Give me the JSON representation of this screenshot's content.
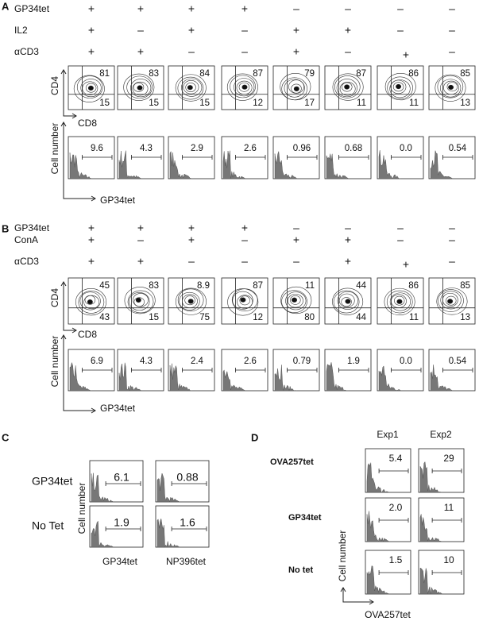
{
  "panels": [
    {
      "label": "A",
      "conditions": [
        {
          "name": "GP34tet",
          "signs": [
            "+",
            "+",
            "+",
            "+",
            "–",
            "–",
            "–",
            "–"
          ]
        },
        {
          "name": "IL2",
          "signs": [
            "+",
            "–",
            "+",
            "–",
            "+",
            "+",
            "–",
            "–"
          ]
        },
        {
          "name": "αCD3",
          "signs": [
            "+",
            "+",
            "–",
            "–",
            "+",
            "–",
            "+",
            "–"
          ]
        }
      ],
      "contour_y_label": "CD4",
      "contour_x_label": "CD8",
      "contour_top": [
        "81",
        "83",
        "84",
        "87",
        "79",
        "87",
        "86",
        "85"
      ],
      "contour_bottom": [
        "15",
        "15",
        "15",
        "12",
        "17",
        "11",
        "11",
        "13"
      ],
      "hist_y_label": "Cell number",
      "hist_x_label": "GP34tet",
      "hist_values": [
        "9.6",
        "4.3",
        "2.9",
        "2.6",
        "0.96",
        "0.68",
        "0.0",
        "0.54"
      ]
    },
    {
      "label": "B",
      "conditions": [
        {
          "name": "GP34tet",
          "signs": [
            "+",
            "+",
            "+",
            "+",
            "–",
            "–",
            "–",
            "–"
          ]
        },
        {
          "name": "ConA",
          "signs": [
            "+",
            "–",
            "+",
            "–",
            "+",
            "+",
            "–",
            "–"
          ]
        },
        {
          "name": "αCD3",
          "signs": [
            "+",
            "+",
            "–",
            "–",
            "–",
            "+",
            "+",
            "–"
          ]
        }
      ],
      "contour_y_label": "CD4",
      "contour_x_label": "CD8",
      "contour_top": [
        "45",
        "83",
        "8.9",
        "87",
        "11",
        "44",
        "86",
        "85"
      ],
      "contour_bottom": [
        "43",
        "15",
        "75",
        "12",
        "80",
        "44",
        "11",
        "13"
      ],
      "hist_y_label": "Cell number",
      "hist_x_label": "GP34tet",
      "hist_values": [
        "6.9",
        "4.3",
        "2.4",
        "2.6",
        "0.79",
        "1.9",
        "0.0",
        "0.54"
      ]
    },
    {
      "label": "C",
      "rows": [
        "GP34tet",
        "No Tet"
      ],
      "x_labels": [
        "GP34tet",
        "NP396tet"
      ],
      "y_label": "Cell number",
      "values": [
        [
          "6.1",
          "0.88"
        ],
        [
          "1.9",
          "1.6"
        ]
      ]
    },
    {
      "label": "D",
      "columns": [
        "Exp1",
        "Exp2"
      ],
      "rows": [
        "OVA257tet",
        "GP34tet",
        "No tet"
      ],
      "x_label": "OVA257tet",
      "y_label": "Cell number",
      "values": [
        [
          "5.4",
          "29"
        ],
        [
          "2.0",
          "11"
        ],
        [
          "1.5",
          "10"
        ]
      ]
    }
  ]
}
